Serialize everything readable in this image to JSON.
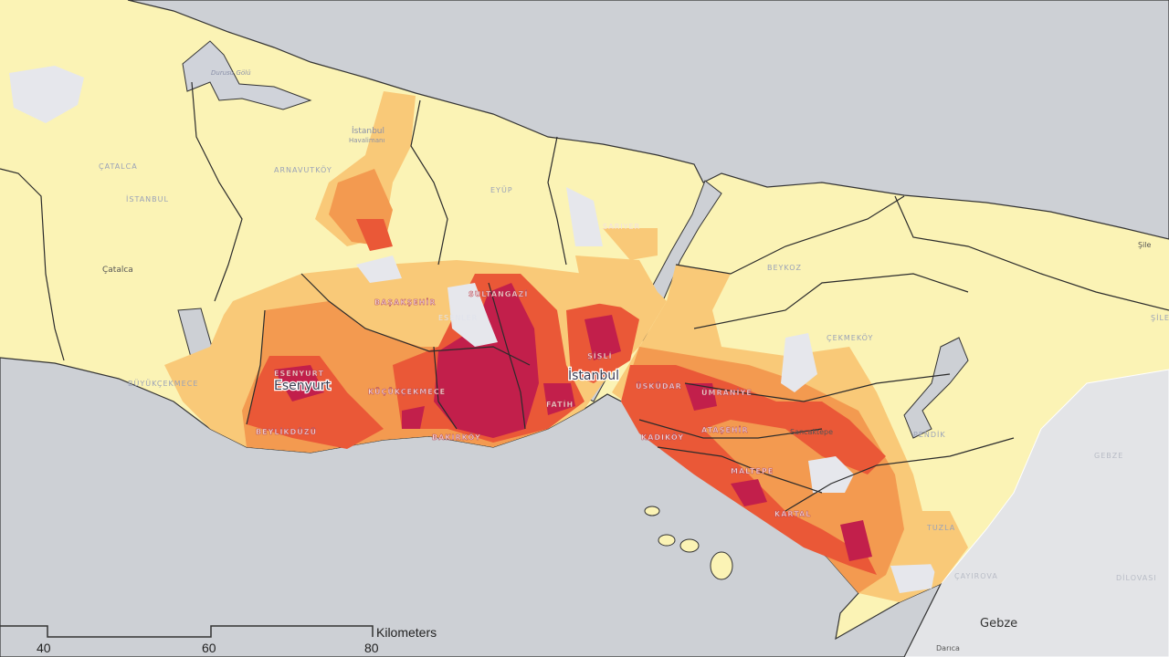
{
  "colors": {
    "sea": "#cdd0d5",
    "land": "#fbf3b5",
    "low": "#f9c978",
    "medium": "#f39a50",
    "high": "#ea5837",
    "very_high": "#c21f4b",
    "no_data": "#e6e7ec",
    "outside": "#e3e4e7"
  },
  "labels": {
    "durusu": "Durusu Gölü",
    "airport_1": "İstanbul",
    "airport_2": "Havalimanı",
    "catalca_d": "ÇATALCA",
    "istanbul_d": "İSTANBUL",
    "catalca": "Çatalca",
    "arnavutkoy": "ARNAVUTKÖY",
    "eyup": "EYÜP",
    "sariyer": "SARIYER",
    "beykoz": "BEYKOZ",
    "sile": "Şile",
    "sile_d": "ŞİLE",
    "cekmekoy": "ÇEKMEKÖY",
    "buyukcekmece": "BÜYÜKÇEKMECE",
    "basaksehir": "BAŞAKŞEHİR",
    "sultangazi": "SULTANGAZİ",
    "esenler": "ESENLER",
    "sisli": "ŞİŞLİ",
    "fatih": "FATİH",
    "bakirkoy": "BAKIRKÖY",
    "kucukcekmece": "KÜÇÜKÇEKMECE",
    "beylikduzu": "BEYLİKDÜZÜ",
    "esenyurt_d": "ESENYURT",
    "esenyurt": "Esenyurt",
    "istanbul": "İstanbul",
    "uskudar": "ÜSKÜDAR",
    "umraniye": "ÜMRANİYE",
    "atasehir": "ATAŞEHİR",
    "kadikoy": "KADIKÖY",
    "sancaktepe": "Sancaktepe",
    "maltepe": "MALTEPE",
    "kartal": "KARTAL",
    "pendik": "PENDİK",
    "tuzla": "TUZLA",
    "gebze_d": "GEBZE",
    "dilovasi": "DİLOVASI",
    "cayirova": "ÇAYIROVA",
    "gebze": "Gebze",
    "darica": "Darıca"
  },
  "scale_bar": {
    "unit": "Kilometers",
    "ticks": [
      "40",
      "60",
      "80"
    ]
  }
}
